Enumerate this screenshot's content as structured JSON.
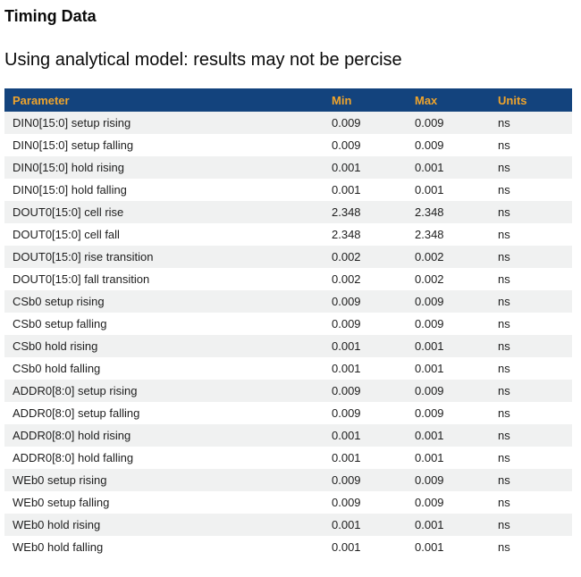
{
  "page": {
    "title": "Timing Data",
    "subtitle": "Using analytical model: results may not be percise"
  },
  "table": {
    "columns": [
      "Parameter",
      "Min",
      "Max",
      "Units"
    ],
    "rows": [
      [
        "DIN0[15:0] setup rising",
        "0.009",
        "0.009",
        "ns"
      ],
      [
        "DIN0[15:0] setup falling",
        "0.009",
        "0.009",
        "ns"
      ],
      [
        "DIN0[15:0] hold rising",
        "0.001",
        "0.001",
        "ns"
      ],
      [
        "DIN0[15:0] hold falling",
        "0.001",
        "0.001",
        "ns"
      ],
      [
        "DOUT0[15:0] cell rise",
        "2.348",
        "2.348",
        "ns"
      ],
      [
        "DOUT0[15:0] cell fall",
        "2.348",
        "2.348",
        "ns"
      ],
      [
        "DOUT0[15:0] rise transition",
        "0.002",
        "0.002",
        "ns"
      ],
      [
        "DOUT0[15:0] fall transition",
        "0.002",
        "0.002",
        "ns"
      ],
      [
        "CSb0 setup rising",
        "0.009",
        "0.009",
        "ns"
      ],
      [
        "CSb0 setup falling",
        "0.009",
        "0.009",
        "ns"
      ],
      [
        "CSb0 hold rising",
        "0.001",
        "0.001",
        "ns"
      ],
      [
        "CSb0 hold falling",
        "0.001",
        "0.001",
        "ns"
      ],
      [
        "ADDR0[8:0] setup rising",
        "0.009",
        "0.009",
        "ns"
      ],
      [
        "ADDR0[8:0] setup falling",
        "0.009",
        "0.009",
        "ns"
      ],
      [
        "ADDR0[8:0] hold rising",
        "0.001",
        "0.001",
        "ns"
      ],
      [
        "ADDR0[8:0] hold falling",
        "0.001",
        "0.001",
        "ns"
      ],
      [
        "WEb0 setup rising",
        "0.009",
        "0.009",
        "ns"
      ],
      [
        "WEb0 setup falling",
        "0.009",
        "0.009",
        "ns"
      ],
      [
        "WEb0 hold rising",
        "0.001",
        "0.001",
        "ns"
      ],
      [
        "WEb0 hold falling",
        "0.001",
        "0.001",
        "ns"
      ]
    ]
  },
  "colors": {
    "header_bg": "#13437D",
    "header_text": "#EFA42C",
    "stripe_bg": "#F0F1F1",
    "body_text": "#1E1E1E",
    "title_text": "#0A0A0A"
  }
}
